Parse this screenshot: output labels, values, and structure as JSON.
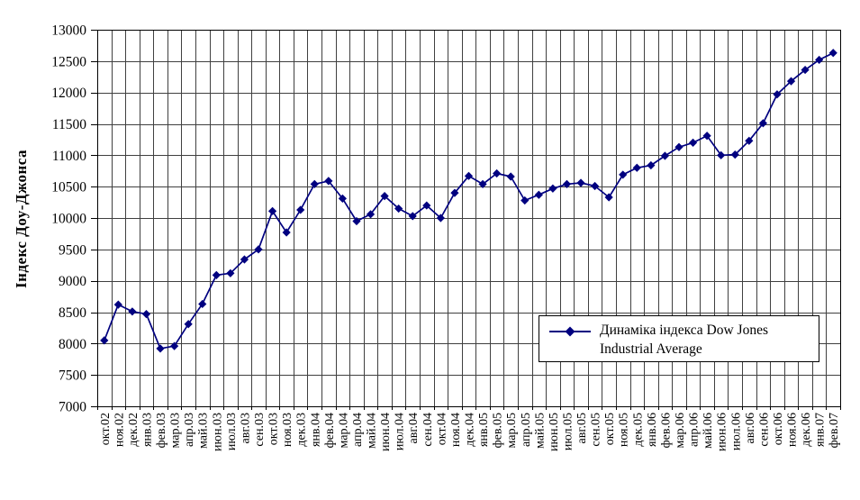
{
  "chart_data": {
    "type": "line",
    "title": "",
    "xlabel": "",
    "ylabel": "Індекс Доу-Джонса",
    "series_label": "Динаміка індекса Dow Jones Industrial Average",
    "legend_position": "right-center-box",
    "grid": true,
    "ylim": [
      7000,
      13000
    ],
    "ytick_step": 500,
    "yticks": [
      13000,
      12500,
      12000,
      11500,
      11000,
      10500,
      10000,
      9500,
      9000,
      8500,
      8000,
      7500,
      7000
    ],
    "colors": {
      "line": "#000080",
      "marker": "#000080",
      "grid": "#404040",
      "axis": "#000000",
      "text": "#000000",
      "background": "#ffffff"
    },
    "categories": [
      "окт.02",
      "ноя.02",
      "дек.02",
      "янв.03",
      "фев.03",
      "мар.03",
      "апр.03",
      "май.03",
      "июн.03",
      "июл.03",
      "авг.03",
      "сен.03",
      "окт.03",
      "ноя.03",
      "дек.03",
      "янв.04",
      "фев.04",
      "мар.04",
      "апр.04",
      "май.04",
      "июн.04",
      "июл.04",
      "авг.04",
      "сен.04",
      "окт.04",
      "ноя.04",
      "дек.04",
      "янв.05",
      "фев.05",
      "мар.05",
      "апр.05",
      "май.05",
      "июн.05",
      "июл.05",
      "авг.05",
      "сен.05",
      "окт.05",
      "ноя.05",
      "дек.05",
      "янв.06",
      "фев.06",
      "мар.06",
      "апр.06",
      "май.06",
      "июн.06",
      "июл.06",
      "авг.06",
      "сен.06",
      "окт.06",
      "ноя.06",
      "дек.06",
      "янв.07",
      "фев.07"
    ],
    "series": [
      {
        "name": "Динаміка індекса Dow Jones Industrial Average",
        "values": [
          8050,
          8620,
          8510,
          8470,
          7920,
          7960,
          8310,
          8630,
          9090,
          9120,
          9340,
          9500,
          10110,
          9770,
          10130,
          10540,
          10590,
          10310,
          9950,
          10060,
          10350,
          10150,
          10030,
          10200,
          10000,
          10400,
          10670,
          10540,
          10710,
          10660,
          10280,
          10370,
          10470,
          10540,
          10560,
          10510,
          10330,
          10690,
          10800,
          10840,
          10990,
          11130,
          11200,
          11310,
          11000,
          11010,
          11230,
          11510,
          11970,
          12180,
          12360,
          12520,
          12630
        ]
      }
    ]
  }
}
